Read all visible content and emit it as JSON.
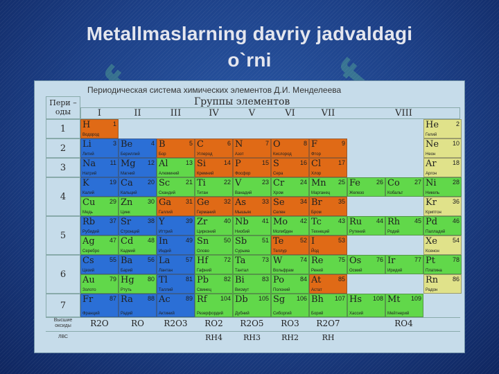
{
  "slide": {
    "title_line1": "Metallmaslarning davriy jadvaldagi",
    "title_line2": "o`rni"
  },
  "watermark": "Isaf",
  "table": {
    "title": "Периодическая система химических элементов Д.И. Менделеева",
    "period_label_1": "Пери –",
    "period_label_2": "оды",
    "groups_label": "Группы элементов",
    "groups": [
      "I",
      "II",
      "III",
      "IV",
      "V",
      "VI",
      "VII",
      "VIII"
    ],
    "periods": [
      "1",
      "2",
      "3",
      "4",
      "5",
      "6",
      "7"
    ],
    "oxide_row_label": "Высшие оксиды",
    "hydride_row_label": "ЛВС",
    "oxides": [
      "R2O",
      "RO",
      "R2O3",
      "RO2",
      "R2O5",
      "RO3",
      "R2O7",
      "RO4"
    ],
    "hydrides": [
      "RH4",
      "RH3",
      "RH2",
      "RH"
    ]
  },
  "colors": {
    "s_block": "#2b6fd6",
    "p_block": "#61d84a",
    "d_block": "#e06a16",
    "noble": "#e0e28a"
  },
  "elements": [
    {
      "sym": "H",
      "num": "1",
      "name": "Водород"
    },
    {
      "sym": "He",
      "num": "2",
      "name": "Гелий"
    },
    {
      "sym": "Li",
      "num": "3",
      "name": "Литий"
    },
    {
      "sym": "Be",
      "num": "4",
      "name": "Бериллий"
    },
    {
      "sym": "B",
      "num": "5",
      "name": "Бор"
    },
    {
      "sym": "C",
      "num": "6",
      "name": "Углерод"
    },
    {
      "sym": "N",
      "num": "7",
      "name": "Азот"
    },
    {
      "sym": "O",
      "num": "8",
      "name": "Кислород"
    },
    {
      "sym": "F",
      "num": "9",
      "name": "Фтор"
    },
    {
      "sym": "Ne",
      "num": "10",
      "name": "Неон"
    },
    {
      "sym": "Na",
      "num": "11",
      "name": "Натрий"
    },
    {
      "sym": "Mg",
      "num": "12",
      "name": "Магний"
    },
    {
      "sym": "Al",
      "num": "13",
      "name": "Алюминий"
    },
    {
      "sym": "Si",
      "num": "14",
      "name": "Кремний"
    },
    {
      "sym": "P",
      "num": "15",
      "name": "Фосфор"
    },
    {
      "sym": "S",
      "num": "16",
      "name": "Сера"
    },
    {
      "sym": "Cl",
      "num": "17",
      "name": "Хлор"
    },
    {
      "sym": "Ar",
      "num": "18",
      "name": "Аргон"
    },
    {
      "sym": "K",
      "num": "19",
      "name": "Калий"
    },
    {
      "sym": "Ca",
      "num": "20",
      "name": "Кальций"
    },
    {
      "sym": "Sc",
      "num": "21",
      "name": "Скандий"
    },
    {
      "sym": "Ti",
      "num": "22",
      "name": "Титан"
    },
    {
      "sym": "V",
      "num": "23",
      "name": "Ванадий"
    },
    {
      "sym": "Cr",
      "num": "24",
      "name": "Хром"
    },
    {
      "sym": "Mn",
      "num": "25",
      "name": "Марганец"
    },
    {
      "sym": "Fe",
      "num": "26",
      "name": "Железо"
    },
    {
      "sym": "Co",
      "num": "27",
      "name": "Кобальт"
    },
    {
      "sym": "Ni",
      "num": "28",
      "name": "Никель"
    },
    {
      "sym": "Cu",
      "num": "29",
      "name": "Медь"
    },
    {
      "sym": "Zn",
      "num": "30",
      "name": "Цинк"
    },
    {
      "sym": "Ga",
      "num": "31",
      "name": "Галлий"
    },
    {
      "sym": "Ge",
      "num": "32",
      "name": "Германий"
    },
    {
      "sym": "As",
      "num": "33",
      "name": "Мышьяк"
    },
    {
      "sym": "Se",
      "num": "34",
      "name": "Селен"
    },
    {
      "sym": "Br",
      "num": "35",
      "name": "Бром"
    },
    {
      "sym": "Kr",
      "num": "36",
      "name": "Криптон"
    },
    {
      "sym": "Rb",
      "num": "37",
      "name": "Рубидий"
    },
    {
      "sym": "Sr",
      "num": "38",
      "name": "Стронций"
    },
    {
      "sym": "Y",
      "num": "39",
      "name": "Иттрий"
    },
    {
      "sym": "Zr",
      "num": "40",
      "name": "Цирконий"
    },
    {
      "sym": "Nb",
      "num": "41",
      "name": "Ниобий"
    },
    {
      "sym": "Mo",
      "num": "42",
      "name": "Молибден"
    },
    {
      "sym": "Tc",
      "num": "43",
      "name": "Технеций"
    },
    {
      "sym": "Ru",
      "num": "44",
      "name": "Рутений"
    },
    {
      "sym": "Rh",
      "num": "45",
      "name": "Родий"
    },
    {
      "sym": "Pd",
      "num": "46",
      "name": "Палладий"
    },
    {
      "sym": "Ag",
      "num": "47",
      "name": "Серебро"
    },
    {
      "sym": "Cd",
      "num": "48",
      "name": "Кадмий"
    },
    {
      "sym": "In",
      "num": "49",
      "name": "Индий"
    },
    {
      "sym": "Sn",
      "num": "50",
      "name": "Олово"
    },
    {
      "sym": "Sb",
      "num": "51",
      "name": "Сурьма"
    },
    {
      "sym": "Te",
      "num": "52",
      "name": "Теллур"
    },
    {
      "sym": "I",
      "num": "53",
      "name": "Йод"
    },
    {
      "sym": "Xe",
      "num": "54",
      "name": "Ксенон"
    },
    {
      "sym": "Cs",
      "num": "55",
      "name": "Цезий"
    },
    {
      "sym": "Ba",
      "num": "56",
      "name": "Барий"
    },
    {
      "sym": "La",
      "num": "57",
      "name": "Лантан"
    },
    {
      "sym": "Hf",
      "num": "72",
      "name": "Гафний"
    },
    {
      "sym": "Ta",
      "num": "73",
      "name": "Тантал"
    },
    {
      "sym": "W",
      "num": "74",
      "name": "Вольфрам"
    },
    {
      "sym": "Re",
      "num": "75",
      "name": "Рений"
    },
    {
      "sym": "Os",
      "num": "76",
      "name": "Осмий"
    },
    {
      "sym": "Ir",
      "num": "77",
      "name": "Иридий"
    },
    {
      "sym": "Pt",
      "num": "78",
      "name": "Платина"
    },
    {
      "sym": "Au",
      "num": "79",
      "name": "Золото"
    },
    {
      "sym": "Hg",
      "num": "80",
      "name": "Ртуть"
    },
    {
      "sym": "Tl",
      "num": "81",
      "name": "Таллий"
    },
    {
      "sym": "Pb",
      "num": "82",
      "name": "Свинец"
    },
    {
      "sym": "Bi",
      "num": "83",
      "name": "Висмут"
    },
    {
      "sym": "Po",
      "num": "84",
      "name": "Полоний"
    },
    {
      "sym": "At",
      "num": "85",
      "name": "Астат"
    },
    {
      "sym": "Rn",
      "num": "86",
      "name": "Радон"
    },
    {
      "sym": "Fr",
      "num": "87",
      "name": "Франций"
    },
    {
      "sym": "Ra",
      "num": "88",
      "name": "Радий"
    },
    {
      "sym": "Ac",
      "num": "89",
      "name": "Актиний"
    },
    {
      "sym": "Rf",
      "num": "104",
      "name": "Резерфордий"
    },
    {
      "sym": "Db",
      "num": "105",
      "name": "Дубний"
    },
    {
      "sym": "Sg",
      "num": "106",
      "name": "Сиборгий"
    },
    {
      "sym": "Bh",
      "num": "107",
      "name": "Борий"
    },
    {
      "sym": "Hs",
      "num": "108",
      "name": "Хассий"
    },
    {
      "sym": "Mt",
      "num": "109",
      "name": "Мейтнерий"
    }
  ]
}
